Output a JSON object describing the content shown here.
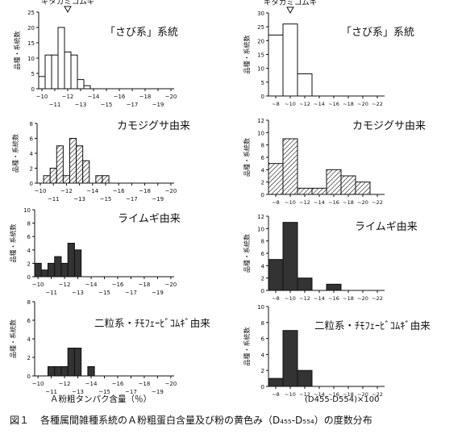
{
  "caption": {
    "label": "図１",
    "text": "各種属間雑種系統のＡ粉粗蛋白含量及び粉の黄色み（D₄₅₅-D₅₅₄）の度数分布"
  },
  "left_xlabel": "Ａ粉粗タンパク含量（％）",
  "right_xlabel": "(D455-D554)×100",
  "colors": {
    "ink": "#111111",
    "hatch_fill": "url(#hatch)",
    "solid_fill": "#333333",
    "open_fill": "#ffffff"
  },
  "chart_data": [
    {
      "id": "L1",
      "type": "bar",
      "style": "open",
      "title": "「さび系」系統",
      "marker_label": "キタカミコムギ",
      "marker_index": 4,
      "ylabel": "品種・系統数",
      "ylim": [
        0,
        25
      ],
      "yticks": [
        "0",
        "5",
        "10",
        "15",
        "20",
        "25"
      ],
      "categories": [
        "~10",
        "~10.5",
        "~11",
        "~11.5",
        "~12",
        "~12.5",
        "~13",
        "~13.5",
        "~14",
        "~14.5",
        "~15",
        "~15.5",
        "~16",
        "~16.5",
        "~17",
        "~17.5",
        "~18",
        "~18.5",
        "~19",
        "~19.5",
        "~20"
      ],
      "values": [
        4,
        11,
        11,
        20,
        12,
        11,
        3,
        1,
        0,
        0,
        0,
        0,
        0,
        0,
        0,
        0,
        0,
        0,
        0,
        0,
        0
      ],
      "ticklabels_top": [
        "~10",
        "~12",
        "~14",
        "~16",
        "~18",
        "~20"
      ],
      "ticklabels_bottom": [
        "~11",
        "~13",
        "~15",
        "~17",
        "~19"
      ]
    },
    {
      "id": "R1",
      "type": "bar",
      "style": "open",
      "title": "「さび系」系統",
      "marker_label": "キタカミコムギ",
      "marker_index": 1,
      "ylabel": "品種・系統数",
      "ylim": [
        0,
        30
      ],
      "yticks": [
        "0",
        "5",
        "10",
        "15",
        "20",
        "25",
        "30"
      ],
      "categories": [
        "~8",
        "~10",
        "~12",
        "~14",
        "~16",
        "~18",
        "~20",
        "~22"
      ],
      "values": [
        22,
        26,
        8,
        0,
        0,
        0,
        0,
        0
      ],
      "ticklabels_top": [
        "~8",
        "~10",
        "~12",
        "~14",
        "~16",
        "~18",
        "~20",
        "~22"
      ]
    },
    {
      "id": "L2",
      "type": "bar",
      "style": "hatched",
      "title": "カモジグサ由来",
      "ylabel": "品種・系統数",
      "ylim": [
        0,
        8
      ],
      "yticks": [
        "0",
        "2",
        "4",
        "6",
        "8"
      ],
      "categories": [
        "~10",
        "~10.5",
        "~11",
        "~11.5",
        "~12",
        "~12.5",
        "~13",
        "~13.5",
        "~14",
        "~14.5",
        "~15",
        "~15.5",
        "~16",
        "~16.5",
        "~17",
        "~17.5",
        "~18",
        "~18.5",
        "~19",
        "~19.5",
        "~20"
      ],
      "values": [
        0,
        1,
        2,
        5,
        1,
        6,
        5,
        3,
        0,
        1,
        1,
        0,
        0,
        0,
        0,
        0,
        0,
        0,
        0,
        0,
        0
      ],
      "ticklabels_top": [
        "~10",
        "~12",
        "~14",
        "~16",
        "~18",
        "~20"
      ],
      "ticklabels_bottom": [
        "~11",
        "~13",
        "~15",
        "~17",
        "~19"
      ]
    },
    {
      "id": "R2",
      "type": "bar",
      "style": "hatched",
      "title": "カモジグサ由来",
      "ylabel": "品種・系統数",
      "ylim": [
        0,
        12
      ],
      "yticks": [
        "0",
        "2",
        "4",
        "6",
        "8",
        "10",
        "12"
      ],
      "categories": [
        "~8",
        "~10",
        "~12",
        "~14",
        "~16",
        "~18",
        "~20",
        "~22"
      ],
      "values": [
        5,
        9,
        1,
        1,
        4,
        3,
        2,
        0
      ],
      "ticklabels_top": [
        "~8",
        "~10",
        "~12",
        "~14",
        "~16",
        "~18",
        "~20",
        "~22"
      ]
    },
    {
      "id": "L3",
      "type": "bar",
      "style": "solid",
      "title": "ライムギ由来",
      "ylabel": "品種・系統数",
      "ylim": [
        0,
        10
      ],
      "yticks": [
        "0",
        "2",
        "4",
        "6",
        "8",
        "10"
      ],
      "categories": [
        "~10",
        "~10.5",
        "~11",
        "~11.5",
        "~12",
        "~12.5",
        "~13",
        "~13.5",
        "~14",
        "~14.5",
        "~15",
        "~15.5",
        "~16",
        "~16.5",
        "~17",
        "~17.5",
        "~18",
        "~18.5",
        "~19",
        "~19.5",
        "~20"
      ],
      "values": [
        2,
        1,
        2,
        3,
        2,
        5,
        4,
        0,
        0,
        0,
        0,
        0,
        0,
        0,
        0,
        0,
        0,
        0,
        0,
        0,
        0
      ],
      "ticklabels_top": [
        "~10",
        "~12",
        "~14",
        "~16",
        "~18",
        "~20"
      ],
      "ticklabels_bottom": [
        "~11",
        "~13",
        "~15",
        "~17",
        "~19"
      ]
    },
    {
      "id": "R3",
      "type": "bar",
      "style": "solid",
      "title": "ライムギ由来",
      "ylabel": "品種・系統数",
      "ylim": [
        0,
        12
      ],
      "yticks": [
        "0",
        "2",
        "4",
        "6",
        "8",
        "10",
        "12"
      ],
      "categories": [
        "~8",
        "~10",
        "~12",
        "~14",
        "~16",
        "~18",
        "~20",
        "~22"
      ],
      "values": [
        5,
        11,
        2,
        0,
        1,
        0,
        0,
        0
      ],
      "ticklabels_top": [
        "~8",
        "~10",
        "~12",
        "~14",
        "~16",
        "~18",
        "~20",
        "~22"
      ]
    },
    {
      "id": "L4",
      "type": "bar",
      "style": "solid",
      "title": "二粒系・ﾁﾓﾌｪｰﾋﾞｺﾑｷﾞ由来",
      "ylabel": "品種・系統数",
      "ylim": [
        0,
        8
      ],
      "yticks": [
        "0",
        "2",
        "4",
        "6",
        "8"
      ],
      "categories": [
        "~10",
        "~10.5",
        "~11",
        "~11.5",
        "~12",
        "~12.5",
        "~13",
        "~13.5",
        "~14",
        "~14.5",
        "~15",
        "~15.5",
        "~16",
        "~16.5",
        "~17",
        "~17.5",
        "~18",
        "~18.5",
        "~19",
        "~19.5",
        "~20"
      ],
      "values": [
        0,
        0,
        1,
        1,
        1,
        3,
        3,
        0,
        1,
        0,
        0,
        0,
        0,
        0,
        0,
        0,
        0,
        0,
        0,
        0,
        0
      ],
      "ticklabels_top": [
        "~10",
        "~12",
        "~14",
        "~16",
        "~18",
        "~20"
      ],
      "ticklabels_bottom": [
        "~11",
        "~13",
        "~15",
        "~17",
        "~19"
      ]
    },
    {
      "id": "R4",
      "type": "bar",
      "style": "solid",
      "title": "二粒系・ﾁﾓﾌｪｰﾋﾞｺﾑｷﾞ由来",
      "ylabel": "品種・系統数",
      "ylim": [
        0,
        10
      ],
      "yticks": [
        "0",
        "2",
        "4",
        "6",
        "8",
        "10"
      ],
      "categories": [
        "~8",
        "~10",
        "~12",
        "~14",
        "~16",
        "~18",
        "~20",
        "~22"
      ],
      "values": [
        1,
        7,
        2,
        0,
        0,
        0,
        0,
        0
      ],
      "ticklabels_top": [
        "~8",
        "~10",
        "~12",
        "~14",
        "~16",
        "~18",
        "~20",
        "~22"
      ]
    }
  ]
}
